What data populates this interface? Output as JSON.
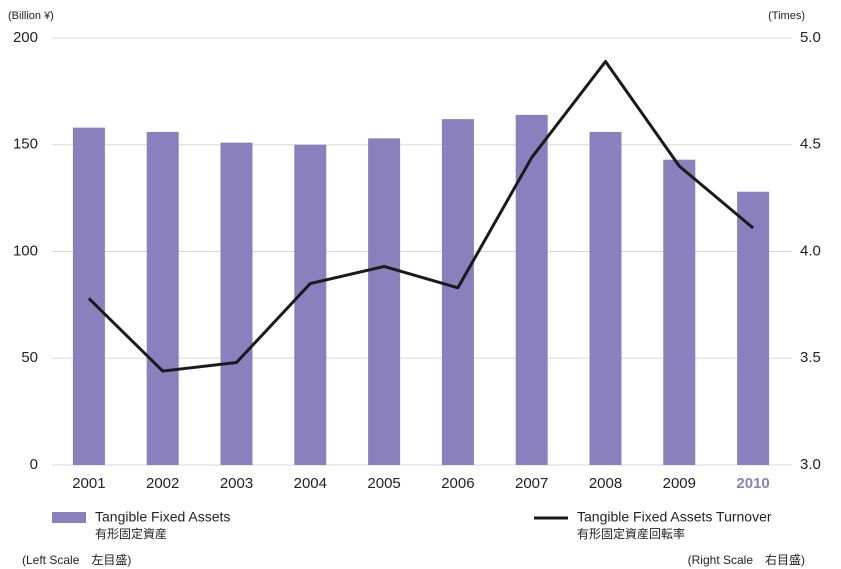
{
  "chart_data": {
    "type": "bar_line",
    "y_label": "(Billion ¥)",
    "y2_label": "(Times)",
    "categories": [
      "2001",
      "2002",
      "2003",
      "2004",
      "2005",
      "2006",
      "2007",
      "2008",
      "2009",
      "2010"
    ],
    "highlight": 9,
    "series": [
      {
        "name": "Tangible Fixed Assets",
        "name_ja": "有形固定資産",
        "scale_note": "(Left Scale　左目盛)",
        "type": "bar",
        "color": "#8a80bd",
        "values": [
          158,
          156,
          151,
          150,
          153,
          162,
          164,
          156,
          143,
          128
        ]
      },
      {
        "name": "Tangible Fixed Assets Turnover",
        "name_ja": "有形固定資産回転率",
        "scale_note": "(Right Scale　右目盛)",
        "type": "line",
        "axis": "y2",
        "color": "#1a1a1a",
        "values": [
          3.78,
          3.44,
          3.48,
          3.85,
          3.93,
          3.83,
          4.44,
          4.89,
          4.4,
          4.11
        ]
      }
    ],
    "ylim": [
      0,
      200
    ],
    "yticks": [
      0,
      50,
      100,
      150,
      200
    ],
    "y2lim": [
      3.0,
      5.0
    ],
    "y2ticks": [
      {
        "value": 3.0,
        "label": "3.0"
      },
      {
        "value": 3.5,
        "label": "3.5"
      },
      {
        "value": 4.0,
        "label": "4.0"
      },
      {
        "value": 4.5,
        "label": "4.5"
      },
      {
        "value": 5.0,
        "label": "5.0"
      }
    ],
    "grid": true
  }
}
